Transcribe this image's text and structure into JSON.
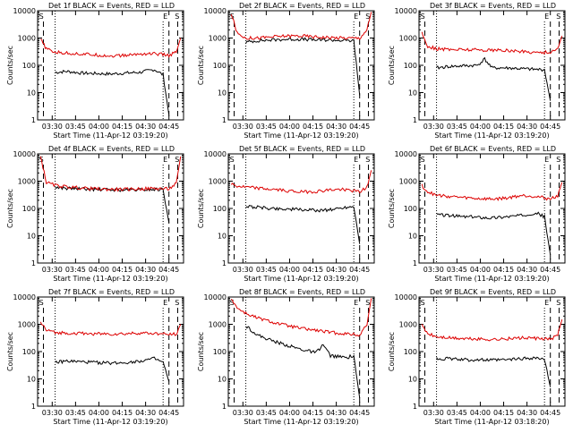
{
  "ytick_labels": [
    "1",
    "10",
    "100",
    "1000",
    "10000"
  ],
  "colors": {
    "events": "#000000",
    "lld": "#dd0000",
    "axes": "#000000",
    "background": "#ffffff"
  },
  "chart_data": [
    {
      "type": "line",
      "title": "Det 1f BLACK = Events, RED = LLD",
      "xlabel": "Start Time (11-Apr-12 03:19:20)",
      "ylabel": "Counts/sec",
      "yscale": "log",
      "ylim": [
        1,
        10000
      ],
      "xticks": [
        "03:30",
        "03:45",
        "04:00",
        "04:15",
        "04:30",
        "04:45"
      ],
      "markers": {
        "left": "S",
        "right": [
          "E",
          "S"
        ]
      },
      "series": [
        {
          "name": "Events",
          "color": "#000000",
          "x": [
            0.12,
            0.2,
            0.3,
            0.4,
            0.5,
            0.6,
            0.7,
            0.8,
            0.86,
            0.9
          ],
          "y": [
            55,
            60,
            52,
            50,
            48,
            52,
            55,
            70,
            45,
            1.5
          ]
        },
        {
          "name": "LLD",
          "color": "#dd0000",
          "x": [
            0.02,
            0.06,
            0.12,
            0.2,
            0.3,
            0.4,
            0.5,
            0.6,
            0.7,
            0.8,
            0.9,
            0.95,
            0.98
          ],
          "y": [
            900,
            400,
            300,
            280,
            260,
            240,
            220,
            230,
            260,
            270,
            230,
            300,
            1000
          ]
        }
      ]
    },
    {
      "type": "line",
      "title": "Det 2f BLACK = Events, RED = LLD",
      "xlabel": "Start Time (11-Apr-12 03:19:20)",
      "ylabel": "Counts/sec",
      "yscale": "log",
      "ylim": [
        1,
        10000
      ],
      "xticks": [
        "03:30",
        "03:45",
        "04:00",
        "04:15",
        "04:30",
        "04:45"
      ],
      "markers": {
        "left": "S",
        "right": [
          "E",
          "S"
        ]
      },
      "series": [
        {
          "name": "Events",
          "color": "#000000",
          "x": [
            0.12,
            0.2,
            0.3,
            0.4,
            0.5,
            0.6,
            0.7,
            0.8,
            0.86,
            0.9
          ],
          "y": [
            700,
            800,
            850,
            900,
            900,
            850,
            850,
            800,
            800,
            8
          ]
        },
        {
          "name": "LLD",
          "color": "#dd0000",
          "x": [
            0.02,
            0.06,
            0.12,
            0.2,
            0.3,
            0.4,
            0.5,
            0.6,
            0.7,
            0.8,
            0.9,
            0.95,
            0.98
          ],
          "y": [
            8000,
            1500,
            1000,
            1000,
            1100,
            1200,
            1200,
            1100,
            1050,
            1000,
            1000,
            2000,
            9000
          ]
        }
      ]
    },
    {
      "type": "line",
      "title": "Det 3f BLACK = Events, RED = LLD",
      "xlabel": "Start Time (11-Apr-12 03:19:20)",
      "ylabel": "Counts/sec",
      "yscale": "log",
      "ylim": [
        1,
        10000
      ],
      "xticks": [
        "03:30",
        "03:45",
        "04:00",
        "04:15",
        "04:30",
        "04:45"
      ],
      "markers": {
        "left": "S",
        "right": [
          "E",
          "S"
        ]
      },
      "series": [
        {
          "name": "Events",
          "color": "#000000",
          "x": [
            0.12,
            0.2,
            0.3,
            0.4,
            0.45,
            0.5,
            0.6,
            0.7,
            0.8,
            0.86,
            0.9
          ],
          "y": [
            80,
            90,
            95,
            100,
            170,
            80,
            80,
            75,
            70,
            70,
            5
          ]
        },
        {
          "name": "LLD",
          "color": "#dd0000",
          "x": [
            0.02,
            0.06,
            0.12,
            0.2,
            0.3,
            0.4,
            0.5,
            0.6,
            0.7,
            0.8,
            0.9,
            0.95,
            0.98
          ],
          "y": [
            1500,
            500,
            400,
            380,
            380,
            370,
            360,
            350,
            320,
            300,
            300,
            400,
            1200
          ]
        }
      ]
    },
    {
      "type": "line",
      "title": "Det 4f BLACK = Events, RED = LLD",
      "xlabel": "Start Time (11-Apr-12 03:19:20)",
      "ylabel": "Counts/sec",
      "yscale": "log",
      "ylim": [
        1,
        10000
      ],
      "xticks": [
        "03:30",
        "03:45",
        "04:00",
        "04:15",
        "04:30",
        "04:45"
      ],
      "markers": {
        "left": "S",
        "right": [
          "E",
          "S"
        ]
      },
      "series": [
        {
          "name": "Events",
          "color": "#000000",
          "x": [
            0.12,
            0.2,
            0.3,
            0.4,
            0.5,
            0.6,
            0.7,
            0.8,
            0.86,
            0.9
          ],
          "y": [
            600,
            550,
            520,
            500,
            480,
            480,
            480,
            500,
            500,
            30
          ]
        },
        {
          "name": "LLD",
          "color": "#dd0000",
          "x": [
            0.02,
            0.06,
            0.12,
            0.2,
            0.3,
            0.4,
            0.5,
            0.6,
            0.7,
            0.8,
            0.9,
            0.95,
            0.98
          ],
          "y": [
            8000,
            900,
            700,
            620,
            560,
            520,
            500,
            500,
            520,
            540,
            520,
            800,
            8000
          ]
        }
      ]
    },
    {
      "type": "line",
      "title": "Det 5f BLACK = Events, RED = LLD",
      "xlabel": "Start Time (11-Apr-12 03:19:20)",
      "ylabel": "Counts/sec",
      "yscale": "log",
      "ylim": [
        1,
        10000
      ],
      "xticks": [
        "03:30",
        "03:45",
        "04:00",
        "04:15",
        "04:30",
        "04:45"
      ],
      "markers": {
        "left": "S",
        "right": [
          "E",
          "S"
        ]
      },
      "series": [
        {
          "name": "Events",
          "color": "#000000",
          "x": [
            0.12,
            0.2,
            0.3,
            0.4,
            0.5,
            0.6,
            0.7,
            0.8,
            0.86,
            0.9
          ],
          "y": [
            120,
            110,
            100,
            95,
            90,
            85,
            90,
            110,
            120,
            5
          ]
        },
        {
          "name": "LLD",
          "color": "#dd0000",
          "x": [
            0.02,
            0.06,
            0.12,
            0.2,
            0.3,
            0.4,
            0.5,
            0.6,
            0.7,
            0.8,
            0.9,
            0.95,
            0.98
          ],
          "y": [
            800,
            650,
            600,
            550,
            500,
            450,
            400,
            420,
            480,
            500,
            400,
            600,
            2500
          ]
        }
      ]
    },
    {
      "type": "line",
      "title": "Det 6f BLACK = Events, RED = LLD",
      "xlabel": "Start Time (11-Apr-12 03:19:20)",
      "ylabel": "Counts/sec",
      "yscale": "log",
      "ylim": [
        1,
        10000
      ],
      "xticks": [
        "03:30",
        "03:45",
        "04:00",
        "04:15",
        "04:30",
        "04:45"
      ],
      "markers": {
        "left": "S",
        "right": [
          "E",
          "S"
        ]
      },
      "series": [
        {
          "name": "Events",
          "color": "#000000",
          "x": [
            0.12,
            0.2,
            0.3,
            0.4,
            0.5,
            0.6,
            0.7,
            0.8,
            0.86,
            0.9
          ],
          "y": [
            60,
            55,
            50,
            48,
            45,
            50,
            55,
            70,
            50,
            2
          ]
        },
        {
          "name": "LLD",
          "color": "#dd0000",
          "x": [
            0.02,
            0.06,
            0.12,
            0.2,
            0.3,
            0.4,
            0.5,
            0.6,
            0.7,
            0.8,
            0.9,
            0.95,
            0.98
          ],
          "y": [
            700,
            400,
            300,
            280,
            250,
            230,
            220,
            240,
            300,
            280,
            220,
            300,
            900
          ]
        }
      ]
    },
    {
      "type": "line",
      "title": "Det 7f BLACK = Events, RED = LLD",
      "xlabel": "Start Time (11-Apr-12 03:19:20)",
      "ylabel": "Counts/sec",
      "yscale": "log",
      "ylim": [
        1,
        10000
      ],
      "xticks": [
        "03:30",
        "03:45",
        "04:00",
        "04:15",
        "04:30",
        "04:45"
      ],
      "markers": {
        "left": "S",
        "right": [
          "E",
          "S"
        ]
      },
      "series": [
        {
          "name": "Events",
          "color": "#000000",
          "x": [
            0.12,
            0.2,
            0.3,
            0.4,
            0.5,
            0.6,
            0.7,
            0.8,
            0.86,
            0.9
          ],
          "y": [
            40,
            45,
            42,
            40,
            38,
            40,
            45,
            55,
            40,
            8
          ]
        },
        {
          "name": "LLD",
          "color": "#dd0000",
          "x": [
            0.02,
            0.06,
            0.12,
            0.2,
            0.3,
            0.4,
            0.5,
            0.6,
            0.7,
            0.8,
            0.9,
            0.95,
            0.98
          ],
          "y": [
            1200,
            600,
            500,
            480,
            460,
            450,
            440,
            450,
            480,
            460,
            420,
            450,
            1000
          ]
        }
      ]
    },
    {
      "type": "line",
      "title": "Det 8f BLACK = Events, RED = LLD",
      "xlabel": "Start Time (11-Apr-12 03:19:20)",
      "ylabel": "Counts/sec",
      "yscale": "log",
      "ylim": [
        1,
        10000
      ],
      "xticks": [
        "03:30",
        "03:45",
        "04:00",
        "04:15",
        "04:30",
        "04:45"
      ],
      "markers": {
        "left": "S",
        "right": [
          "E",
          "S"
        ]
      },
      "series": [
        {
          "name": "Events",
          "color": "#000000",
          "x": [
            0.12,
            0.2,
            0.3,
            0.4,
            0.5,
            0.6,
            0.65,
            0.7,
            0.8,
            0.86,
            0.9
          ],
          "y": [
            900,
            400,
            250,
            170,
            120,
            90,
            180,
            70,
            60,
            70,
            2
          ]
        },
        {
          "name": "LLD",
          "color": "#dd0000",
          "x": [
            0.02,
            0.06,
            0.12,
            0.2,
            0.3,
            0.4,
            0.5,
            0.6,
            0.7,
            0.8,
            0.9,
            0.95,
            0.98
          ],
          "y": [
            9000,
            4000,
            2500,
            1700,
            1200,
            900,
            700,
            600,
            500,
            450,
            400,
            1000,
            9000
          ]
        }
      ]
    },
    {
      "type": "line",
      "title": "Det 9f BLACK = Events, RED = LLD",
      "xlabel": "Start Time (11-Apr-12 03:18:20)",
      "ylabel": "Counts/sec",
      "yscale": "log",
      "ylim": [
        1,
        10000
      ],
      "xticks": [
        "03:30",
        "03:45",
        "04:00",
        "04:15",
        "04:30",
        "04:45"
      ],
      "markers": {
        "left": "S",
        "right": [
          "E",
          "S"
        ]
      },
      "series": [
        {
          "name": "Events",
          "color": "#000000",
          "x": [
            0.12,
            0.2,
            0.3,
            0.4,
            0.5,
            0.6,
            0.7,
            0.8,
            0.86,
            0.9
          ],
          "y": [
            55,
            55,
            50,
            50,
            48,
            50,
            55,
            60,
            50,
            5
          ]
        },
        {
          "name": "LLD",
          "color": "#dd0000",
          "x": [
            0.02,
            0.06,
            0.12,
            0.2,
            0.3,
            0.4,
            0.5,
            0.6,
            0.7,
            0.8,
            0.9,
            0.95,
            0.98
          ],
          "y": [
            900,
            450,
            350,
            320,
            300,
            290,
            280,
            290,
            320,
            300,
            280,
            400,
            1500
          ]
        }
      ]
    }
  ]
}
